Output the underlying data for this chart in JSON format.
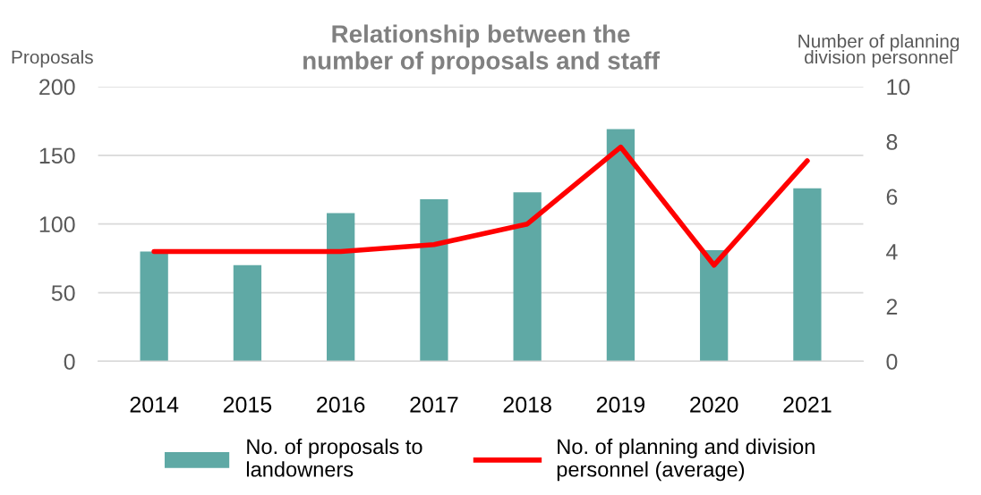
{
  "chart_data": {
    "type": "bar",
    "title": "Relationship between the\nnumber of proposals and staff",
    "ylabel": "Proposals",
    "y2label": "Number of planning\ndivision personnel",
    "categories": [
      "2014",
      "2015",
      "2016",
      "2017",
      "2018",
      "2019",
      "2020",
      "2021"
    ],
    "series": [
      {
        "name": "No. of proposals to\nlandowners",
        "color": "#5fa9a5",
        "values": [
          80,
          70,
          108,
          118,
          123,
          169,
          81,
          126
        ]
      },
      {
        "name": "No. of planning and division\npersonnel (average)",
        "type": "line",
        "axis": "y2",
        "color": "#ff0000",
        "values": [
          4,
          4,
          4,
          4.25,
          5,
          7.8,
          3.5,
          7.3
        ]
      }
    ],
    "ylim": [
      0,
      200
    ],
    "yticks": [
      0,
      50,
      100,
      150,
      200
    ],
    "y2lim": [
      0,
      10
    ],
    "y2ticks": [
      0,
      2,
      4,
      6,
      8,
      10
    ],
    "grid": "y",
    "legend": "bottom"
  }
}
